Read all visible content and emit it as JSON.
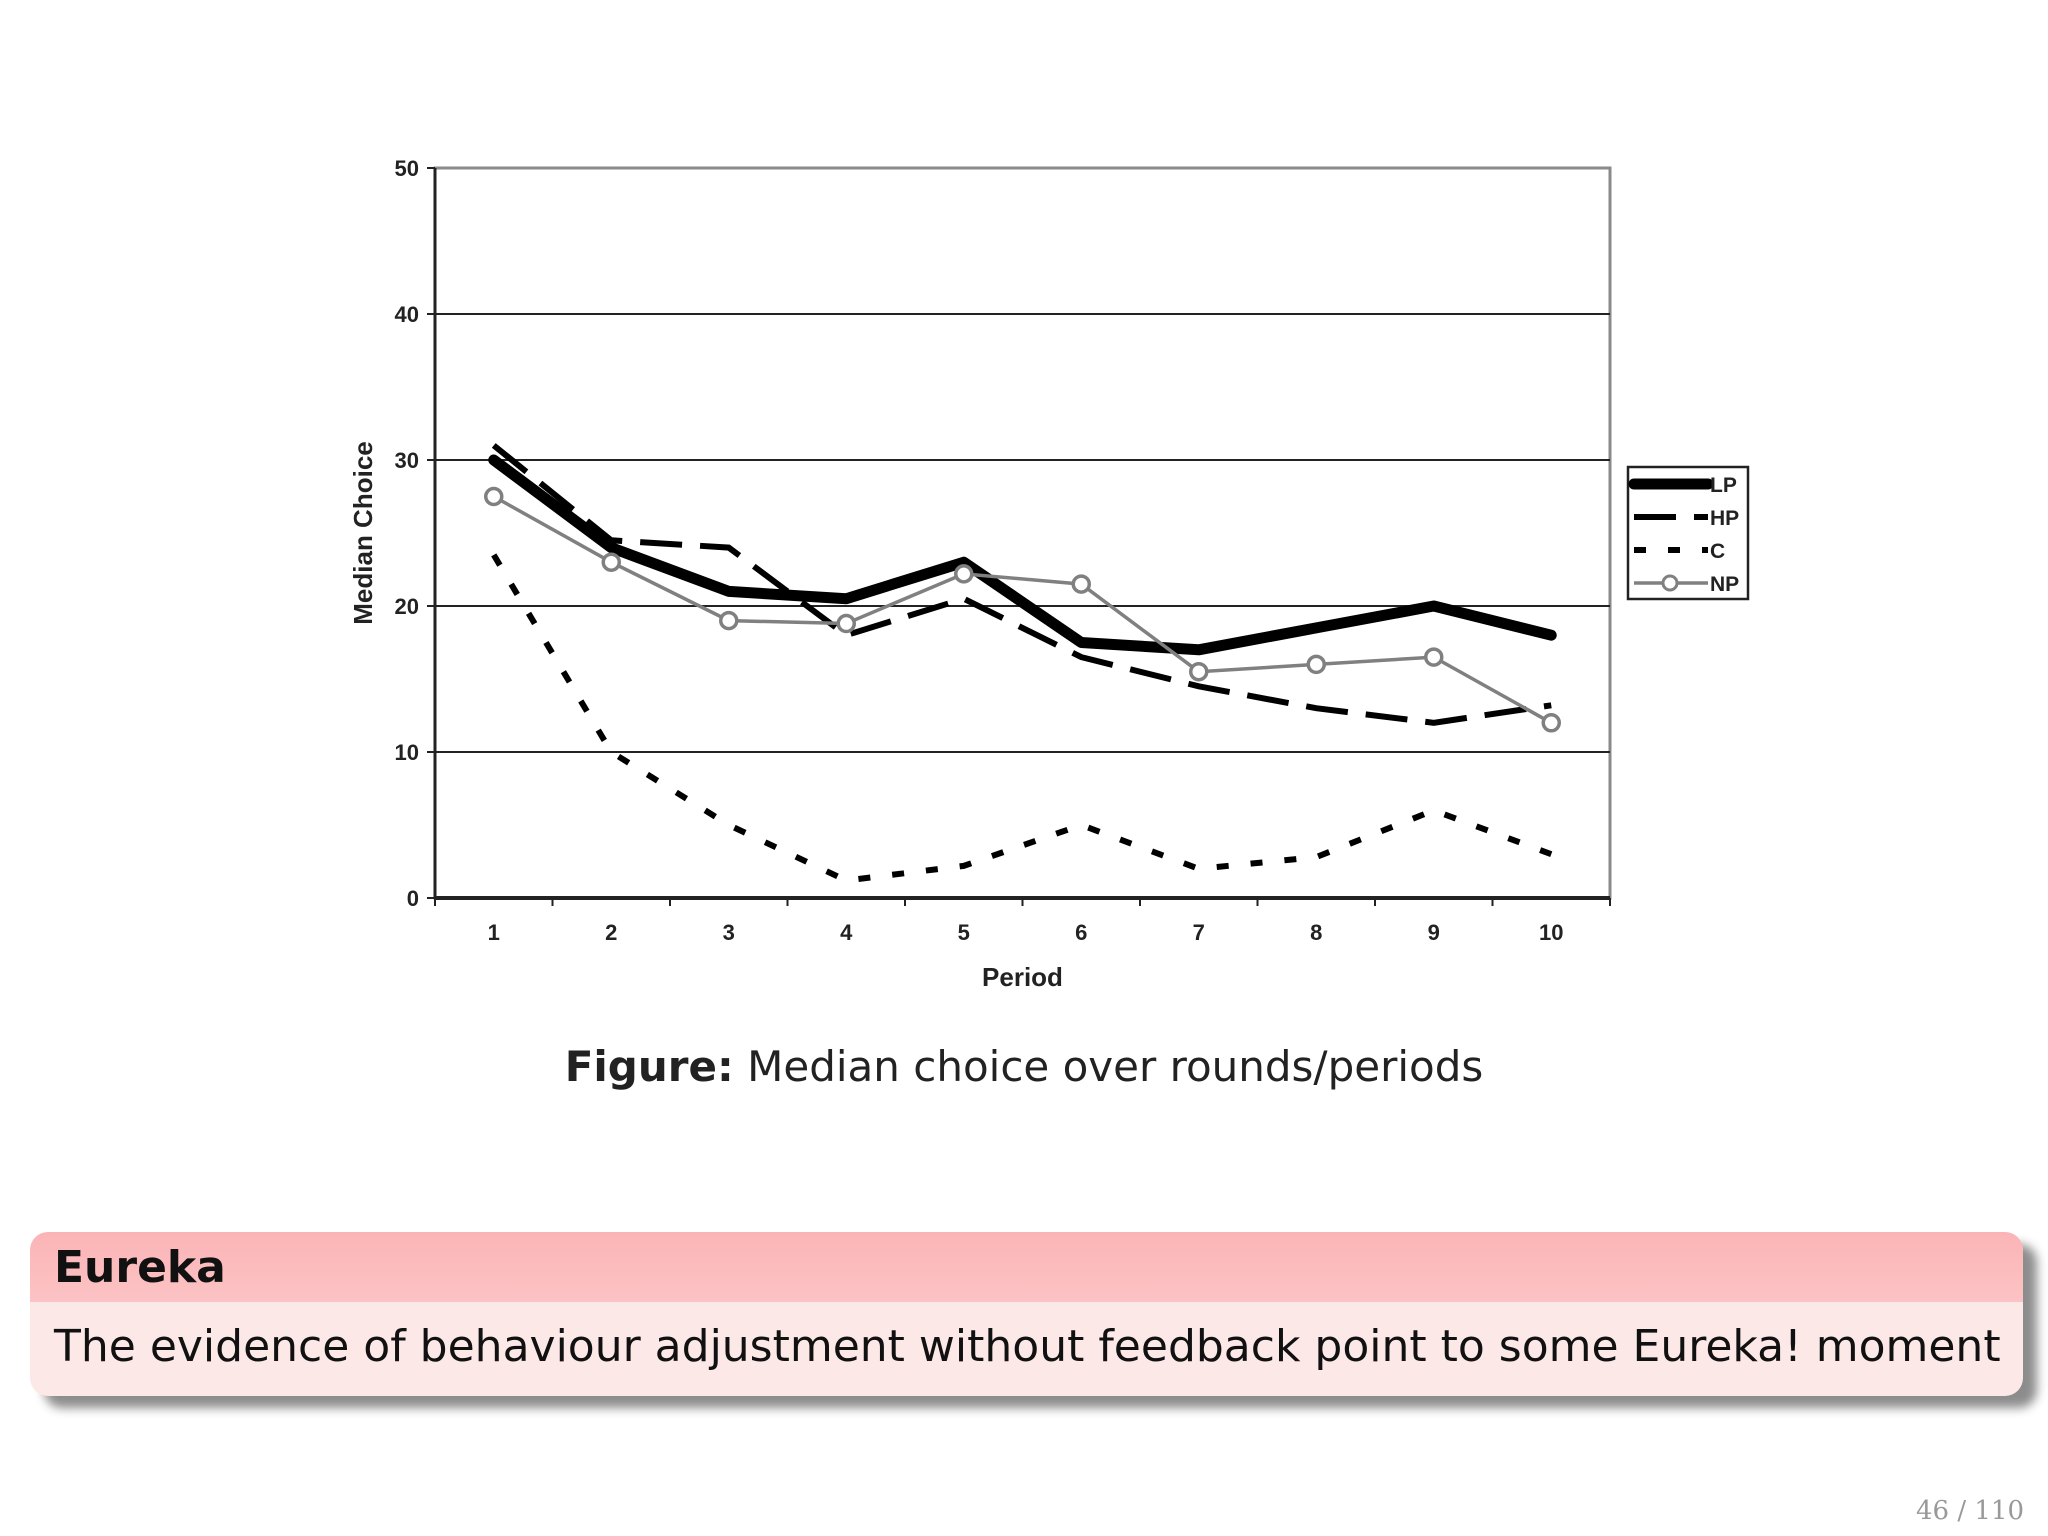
{
  "chart_data": {
    "type": "line",
    "xlabel": "Period",
    "ylabel": "Median Choice",
    "xlim": [
      0.5,
      10.5
    ],
    "ylim": [
      0,
      50
    ],
    "categories": [
      1,
      2,
      3,
      4,
      5,
      6,
      7,
      8,
      9,
      10
    ],
    "y_ticks": [
      0,
      10,
      20,
      30,
      40,
      50
    ],
    "grid": "horizontal",
    "legend_position": "right",
    "series": [
      {
        "name": "LP",
        "style": "thick-solid",
        "color": "#000000",
        "values": [
          30,
          24,
          21,
          20.5,
          23,
          17.5,
          17,
          18.5,
          20,
          18
        ]
      },
      {
        "name": "HP",
        "style": "long-dash",
        "color": "#000000",
        "values": [
          31,
          24.5,
          24,
          18,
          20.5,
          16.5,
          14.5,
          13,
          12,
          13.2
        ]
      },
      {
        "name": "C",
        "style": "short-dash",
        "color": "#000000",
        "values": [
          23.5,
          10,
          5,
          1.2,
          2.2,
          5,
          2,
          2.8,
          6,
          3
        ]
      },
      {
        "name": "NP",
        "style": "gray-circle",
        "color": "#808080",
        "values": [
          27.5,
          23,
          19,
          18.8,
          22.2,
          21.5,
          15.5,
          16,
          16.5,
          12
        ]
      }
    ]
  },
  "caption": {
    "lead": "Figure:",
    "text": "Median choice over rounds/periods"
  },
  "block": {
    "title": "Eureka",
    "body": "The evidence of behaviour adjustment without feedback point to some Eureka!  moment"
  },
  "footer": {
    "page": "46 / 110"
  }
}
